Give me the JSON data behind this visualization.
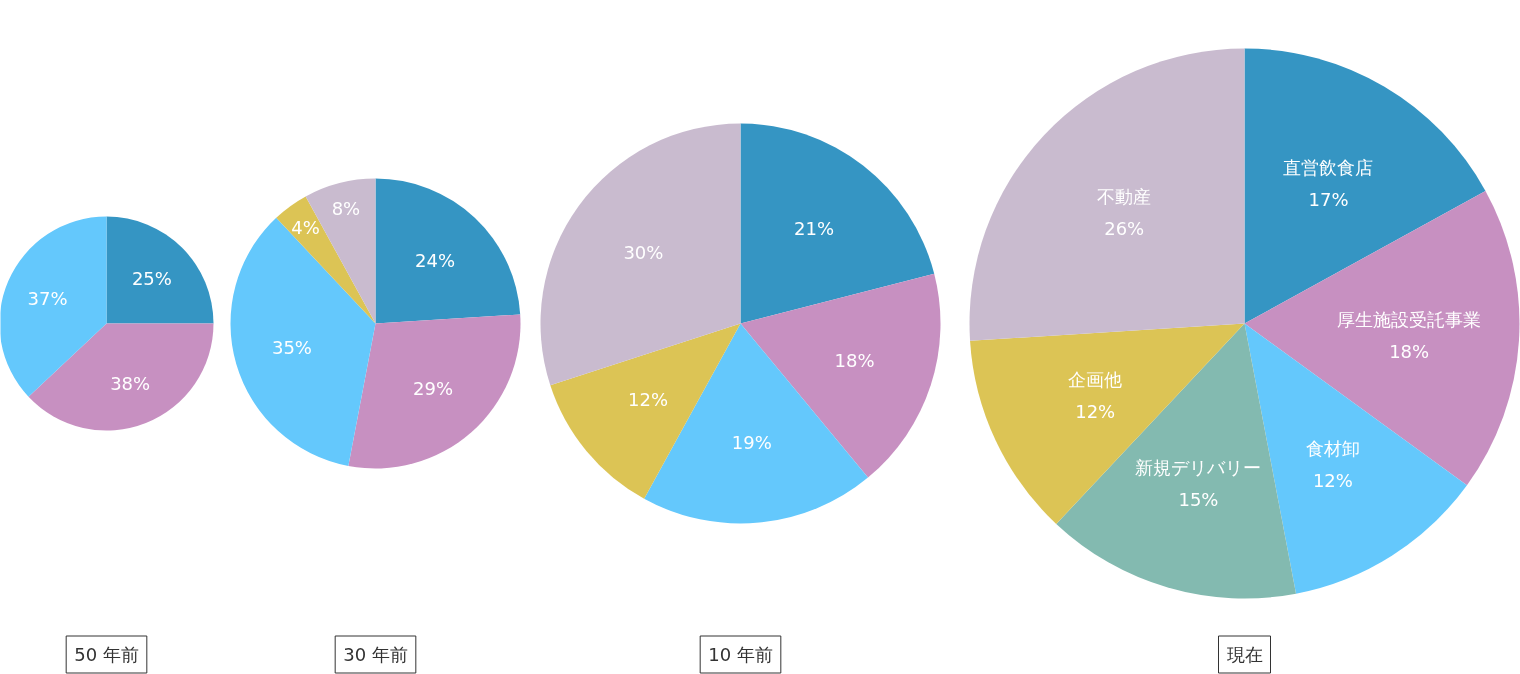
{
  "chart_data": [
    {
      "type": "pie",
      "title": "50 年前",
      "categories": [
        null,
        null,
        null
      ],
      "values": [
        25,
        38,
        37
      ],
      "value_labels": [
        "25%",
        "38%",
        "37%"
      ],
      "colors": [
        "#3595c3",
        "#c790c1",
        "#64c8fc"
      ],
      "legend": false
    },
    {
      "type": "pie",
      "title": "30 年前",
      "categories": [
        null,
        null,
        null,
        null,
        null
      ],
      "values": [
        24,
        29,
        35,
        4,
        8
      ],
      "value_labels": [
        "24%",
        "29%",
        "35%",
        "4%",
        "8%"
      ],
      "colors": [
        "#3595c3",
        "#c790c1",
        "#64c8fc",
        "#dcc455",
        "#c9bbcf"
      ],
      "legend": false
    },
    {
      "type": "pie",
      "title": "10 年前",
      "categories": [
        null,
        null,
        null,
        null,
        null
      ],
      "values": [
        21,
        18,
        19,
        12,
        30
      ],
      "value_labels": [
        "21%",
        "18%",
        "19%",
        "12%",
        "30%"
      ],
      "colors": [
        "#3595c3",
        "#c790c1",
        "#64c8fc",
        "#dcc455",
        "#c9bbcf"
      ],
      "legend": false
    },
    {
      "type": "pie",
      "title": "現在",
      "categories": [
        "直営飲食店",
        "厚生施設受託事業",
        "食材卸",
        "新規デリバリー",
        "企画他",
        "不動産"
      ],
      "values": [
        17,
        18,
        12,
        15,
        12,
        26
      ],
      "value_labels": [
        "17%",
        "18%",
        "12%",
        "15%",
        "12%",
        "26%"
      ],
      "colors": [
        "#3595c3",
        "#c790c1",
        "#64c8fc",
        "#83bab0",
        "#dcc455",
        "#c9bbcf"
      ],
      "legend": false
    }
  ]
}
